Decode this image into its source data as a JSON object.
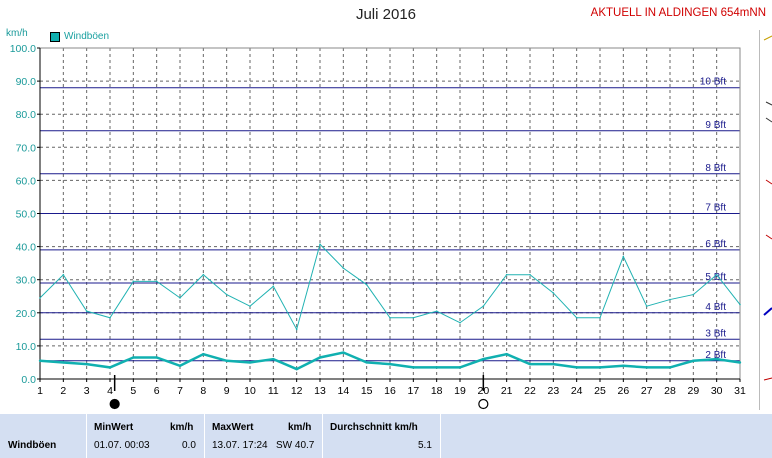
{
  "title": "Juli 2016",
  "station": "AKTUELL IN ALDINGEN 654mNN",
  "unit": "km/h",
  "colors": {
    "line": "#20b2b2",
    "avg": "#10b0b0",
    "bft": "#1a1a8c",
    "grid": "#666666"
  },
  "chart_data": {
    "type": "line",
    "x": [
      1,
      2,
      3,
      4,
      5,
      6,
      7,
      8,
      9,
      10,
      11,
      12,
      13,
      14,
      15,
      16,
      17,
      18,
      19,
      20,
      21,
      22,
      23,
      24,
      25,
      26,
      27,
      28,
      29,
      30,
      31
    ],
    "xlim": [
      1,
      31
    ],
    "ylim": [
      0,
      100
    ],
    "yticks": [
      "0.0",
      "10.0",
      "20.0",
      "30.0",
      "40.0",
      "50.0",
      "60.0",
      "70.0",
      "80.0",
      "90.0",
      "100.0"
    ],
    "ylabel": "km/h",
    "legend": "top-left",
    "series": [
      {
        "name": "Windböen",
        "values": [
          24.5,
          31.5,
          20.5,
          18.5,
          29.5,
          29.5,
          24.5,
          31.5,
          25.5,
          22,
          28,
          15,
          40.7,
          33.5,
          28.5,
          18.5,
          18.5,
          20.5,
          17,
          22,
          31.5,
          31.5,
          26,
          18.5,
          18.5,
          37,
          22,
          24,
          25.5,
          31.5,
          22.5
        ]
      },
      {
        "values": [
          5.5,
          5,
          4.5,
          3.5,
          6.5,
          6.5,
          4,
          7.5,
          5.5,
          5,
          6,
          3,
          6.5,
          8,
          5,
          4.5,
          3.5,
          3.5,
          3.5,
          6,
          7.5,
          4.5,
          4.5,
          3.5,
          3.5,
          4,
          3.5,
          3.5,
          5.5,
          6,
          5
        ]
      }
    ],
    "beaufort": [
      {
        "label": "2 Bft",
        "value": 5.5
      },
      {
        "label": "3 Bft",
        "value": 12
      },
      {
        "label": "4 Bft",
        "value": 20
      },
      {
        "label": "5 Bft",
        "value": 29
      },
      {
        "label": "6 Bft",
        "value": 39
      },
      {
        "label": "7 Bft",
        "value": 50
      },
      {
        "label": "8 Bft",
        "value": 62
      },
      {
        "label": "9 Bft",
        "value": 75
      },
      {
        "label": "10 Bft",
        "value": 88
      }
    ],
    "moon_phases": [
      {
        "day": 4.2,
        "phase": "new"
      },
      {
        "day": 20,
        "phase": "full"
      }
    ]
  },
  "stats": {
    "row_label": "Windböen",
    "min_header": "MinWert",
    "min_unit": "km/h",
    "min_date": "01.07.  00:03",
    "min_value": "0.0",
    "max_header": "MaxWert",
    "max_unit": "km/h",
    "max_date": "13.07.  17:24",
    "max_dir_value": "SW 40.7",
    "avg_header": "Durchschnitt km/h",
    "avg_value": "5.1"
  }
}
